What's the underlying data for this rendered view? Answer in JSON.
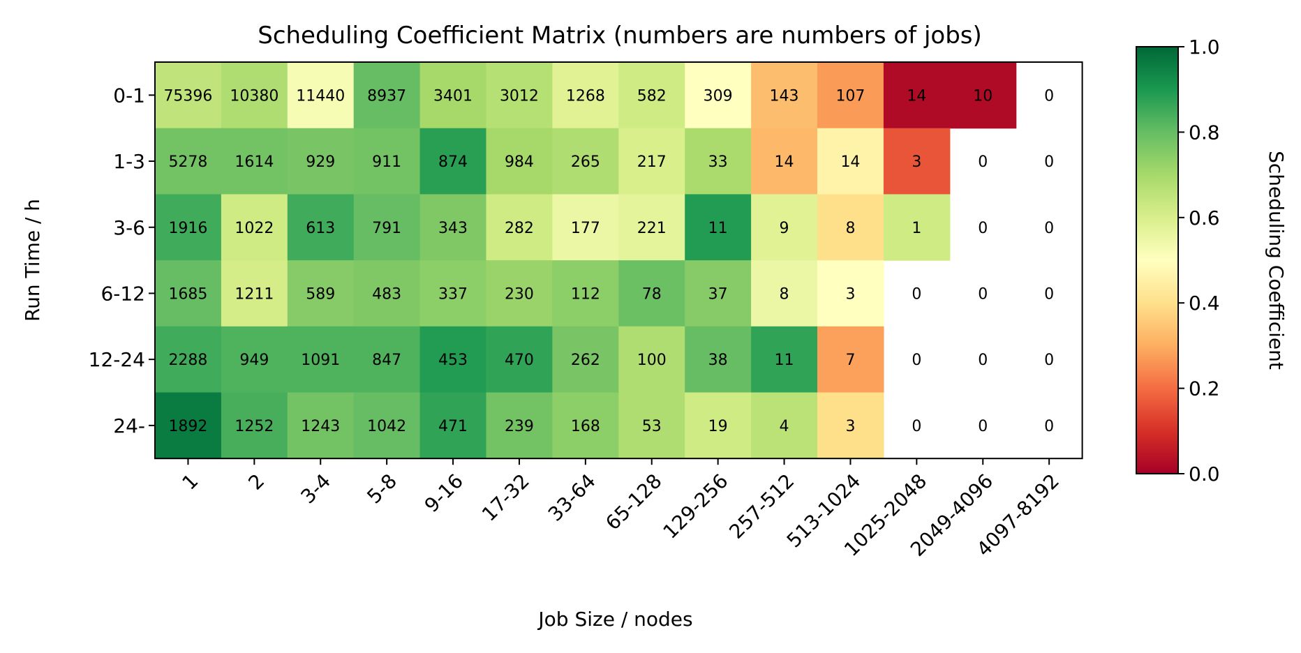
{
  "chart_data": {
    "type": "heatmap",
    "title": "Scheduling Coefficient Matrix (numbers are numbers of jobs)",
    "xlabel": "Job Size / nodes",
    "ylabel": "Run Time / h",
    "x_categories": [
      "1",
      "2",
      "3-4",
      "5-8",
      "9-16",
      "17-32",
      "33-64",
      "65-128",
      "129-256",
      "257-512",
      "513-1024",
      "1025-2048",
      "2049-4096",
      "4097-8192"
    ],
    "y_categories": [
      "0-1",
      "1-3",
      "3-6",
      "6-12",
      "12-24",
      "24-"
    ],
    "job_counts": [
      [
        75396,
        10380,
        11440,
        8937,
        3401,
        3012,
        1268,
        582,
        309,
        143,
        107,
        14,
        10,
        0
      ],
      [
        5278,
        1614,
        929,
        911,
        874,
        984,
        265,
        217,
        33,
        14,
        14,
        3,
        0,
        0
      ],
      [
        1916,
        1022,
        613,
        791,
        343,
        282,
        177,
        221,
        11,
        9,
        8,
        1,
        0,
        0
      ],
      [
        1685,
        1211,
        589,
        483,
        337,
        230,
        112,
        78,
        37,
        8,
        3,
        0,
        0,
        0
      ],
      [
        2288,
        949,
        1091,
        847,
        453,
        470,
        262,
        100,
        38,
        11,
        7,
        0,
        0,
        0
      ],
      [
        1892,
        1252,
        1243,
        1042,
        471,
        239,
        168,
        53,
        19,
        4,
        3,
        0,
        0,
        0
      ]
    ],
    "coefficients": [
      [
        0.65,
        0.68,
        0.52,
        0.8,
        0.7,
        0.67,
        0.58,
        0.62,
        0.5,
        0.33,
        0.27,
        0.02,
        0.02,
        null
      ],
      [
        0.78,
        0.78,
        0.77,
        0.78,
        0.88,
        0.7,
        0.68,
        0.6,
        0.69,
        0.32,
        0.46,
        0.16,
        null,
        null
      ],
      [
        0.85,
        0.62,
        0.85,
        0.8,
        0.76,
        0.62,
        0.55,
        0.57,
        0.89,
        0.58,
        0.4,
        0.62,
        null,
        null
      ],
      [
        0.8,
        0.61,
        0.75,
        0.76,
        0.74,
        0.72,
        0.74,
        0.79,
        0.75,
        0.55,
        0.5,
        null,
        null,
        null
      ],
      [
        0.85,
        0.83,
        0.83,
        0.83,
        0.89,
        0.87,
        0.77,
        0.68,
        0.8,
        0.87,
        0.28,
        null,
        null,
        null
      ],
      [
        0.96,
        0.84,
        0.78,
        0.8,
        0.87,
        0.78,
        0.74,
        0.68,
        0.62,
        0.66,
        0.4,
        null,
        null,
        null
      ]
    ],
    "colorbar": {
      "label": "Scheduling Coefficient",
      "range": [
        0.0,
        1.0
      ],
      "ticks": [
        "0.0",
        "0.2",
        "0.4",
        "0.6",
        "0.8",
        "1.0"
      ],
      "colormap": "RdYlGn",
      "stops": [
        "#a50026",
        "#d73027",
        "#f46d43",
        "#fdae61",
        "#fee08b",
        "#ffffbf",
        "#d9ef8b",
        "#a6d96a",
        "#66bd63",
        "#1a9850",
        "#006837"
      ]
    }
  }
}
